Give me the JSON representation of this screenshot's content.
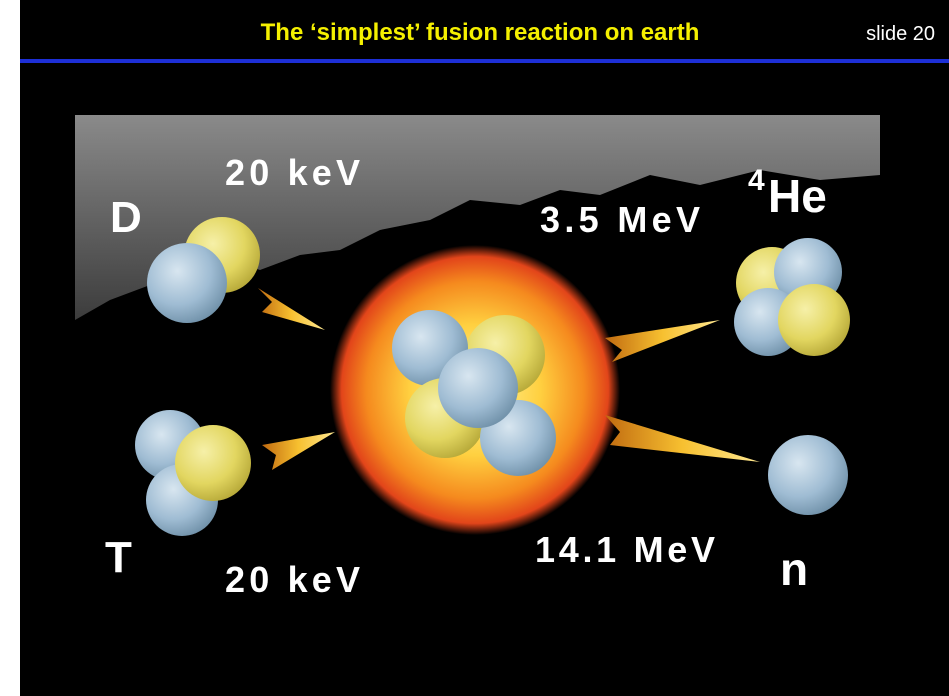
{
  "header": {
    "title": "The ‘simplest’ fusion reaction on earth",
    "slide": "slide 20"
  },
  "reactants": [
    {
      "label": "D",
      "energy": "20 keV"
    },
    {
      "label": "T",
      "energy": "20 keV"
    }
  ],
  "products": [
    {
      "mass_number": "4",
      "label": "He",
      "energy": "3.5 MeV"
    },
    {
      "label": "n",
      "energy": "14.1 MeV"
    }
  ]
}
